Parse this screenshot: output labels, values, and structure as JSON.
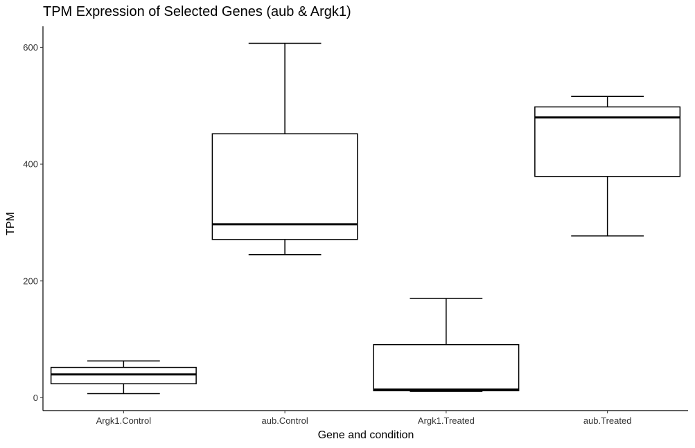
{
  "chart_data": {
    "type": "boxplot",
    "title": "TPM Expression of Selected Genes (aub & Argk1)",
    "xlabel": "Gene and condition",
    "ylabel": "TPM",
    "ylim": [
      -22,
      636
    ],
    "yticks": [
      0,
      200,
      400,
      600
    ],
    "grid": false,
    "categories": [
      "Argk1.Control",
      "aub.Control",
      "Argk1.Treated",
      "aub.Treated"
    ],
    "boxes": [
      {
        "category": "Argk1.Control",
        "whisker_low": 7,
        "q1": 24,
        "median": 40,
        "q3": 52,
        "whisker_high": 63
      },
      {
        "category": "aub.Control",
        "whisker_low": 245,
        "q1": 271,
        "median": 297,
        "q3": 452,
        "whisker_high": 607
      },
      {
        "category": "Argk1.Treated",
        "whisker_low": 11,
        "q1": 12,
        "median": 14,
        "q3": 91,
        "whisker_high": 170
      },
      {
        "category": "aub.Treated",
        "whisker_low": 277,
        "q1": 379,
        "median": 480,
        "q3": 498,
        "whisker_high": 516
      }
    ]
  }
}
